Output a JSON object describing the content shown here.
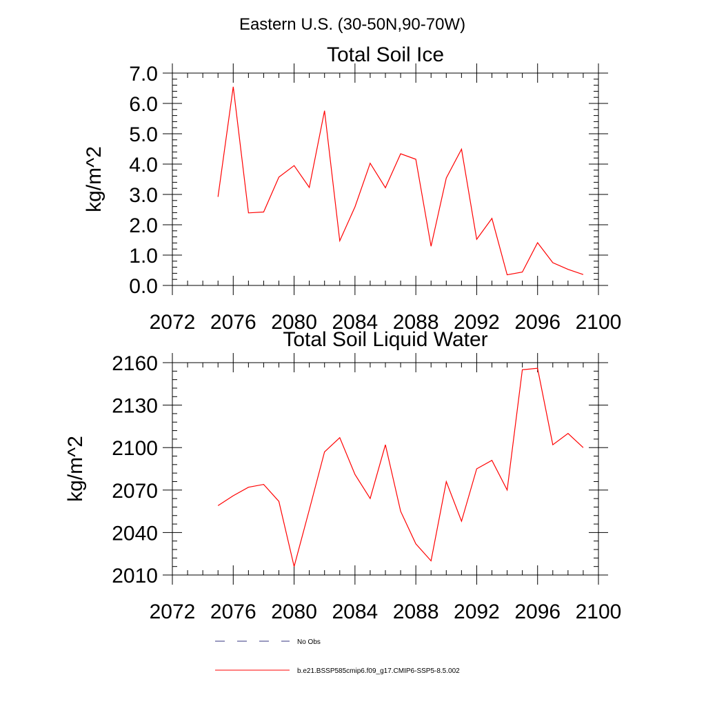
{
  "figure": {
    "title": "Eastern U.S. (30-50N,90-70W)"
  },
  "chart_data": [
    {
      "type": "line",
      "title": "Total Soil Ice",
      "xlabel": "",
      "ylabel": "kg/m^2",
      "xlim": [
        2072,
        2100
      ],
      "ylim": [
        0,
        7
      ],
      "x_ticks": [
        2072,
        2076,
        2080,
        2084,
        2088,
        2092,
        2096,
        2100
      ],
      "y_ticks": [
        "0.0",
        "1.0",
        "2.0",
        "3.0",
        "4.0",
        "5.0",
        "6.0",
        "7.0"
      ],
      "grid": false,
      "series": [
        {
          "name": "b.e21.BSSP585cmip6.f09_g17.CMIP6-SSP5-8.5.002",
          "color": "#ff0000",
          "x": [
            2075,
            2076,
            2077,
            2078,
            2079,
            2080,
            2081,
            2082,
            2083,
            2084,
            2085,
            2086,
            2087,
            2088,
            2089,
            2090,
            2091,
            2092,
            2093,
            2094,
            2095,
            2096,
            2097,
            2098,
            2099
          ],
          "values": [
            2.92,
            6.55,
            2.39,
            2.42,
            3.57,
            3.95,
            3.23,
            5.76,
            1.47,
            2.59,
            4.03,
            3.22,
            4.34,
            4.16,
            1.29,
            3.54,
            4.49,
            1.52,
            2.21,
            0.35,
            0.44,
            1.41,
            0.75,
            0.53,
            0.36
          ]
        }
      ]
    },
    {
      "type": "line",
      "title": "Total Soil Liquid Water",
      "xlabel": "",
      "ylabel": "kg/m^2",
      "xlim": [
        2072,
        2100
      ],
      "ylim": [
        2010,
        2160
      ],
      "x_ticks": [
        2072,
        2076,
        2080,
        2084,
        2088,
        2092,
        2096,
        2100
      ],
      "y_ticks": [
        "2010",
        "2040",
        "2070",
        "2100",
        "2130",
        "2160"
      ],
      "grid": false,
      "series": [
        {
          "name": "b.e21.BSSP585cmip6.f09_g17.CMIP6-SSP5-8.5.002",
          "color": "#ff0000",
          "x": [
            2075,
            2076,
            2077,
            2078,
            2079,
            2080,
            2081,
            2082,
            2083,
            2084,
            2085,
            2086,
            2087,
            2088,
            2089,
            2090,
            2091,
            2092,
            2093,
            2094,
            2095,
            2096,
            2097,
            2098,
            2099
          ],
          "values": [
            2059,
            2066,
            2072,
            2074,
            2062,
            2016,
            2056,
            2097,
            2107,
            2081,
            2064,
            2102,
            2055,
            2032,
            2020,
            2076,
            2048,
            2085,
            2091,
            2070,
            2155,
            2156,
            2102,
            2110,
            2100
          ]
        }
      ]
    }
  ],
  "legend": {
    "entries": [
      {
        "label": "No Obs",
        "style": "dashed",
        "color": "#33337f"
      },
      {
        "label": "b.e21.BSSP585cmip6.f09_g17.CMIP6-SSP5-8.5.002",
        "style": "solid",
        "color": "#ff0000"
      }
    ]
  }
}
